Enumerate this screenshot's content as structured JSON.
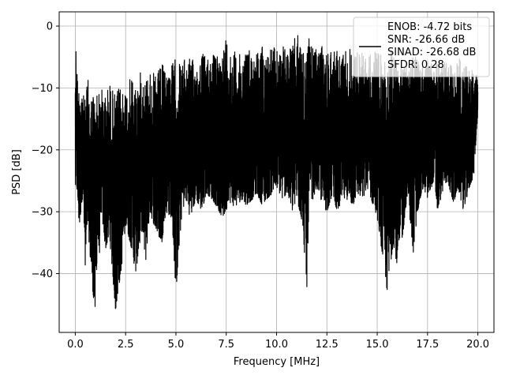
{
  "chart_data": {
    "type": "line",
    "title": "",
    "xlabel": "Frequency [MHz]",
    "ylabel": "PSD [dB]",
    "xlim": [
      -0.8,
      20.8
    ],
    "ylim": [
      -49.5,
      2.3
    ],
    "grid": true,
    "x_ticks": [
      0.0,
      2.5,
      5.0,
      7.5,
      10.0,
      12.5,
      15.0,
      17.5,
      20.0
    ],
    "x_tick_labels": [
      "0.0",
      "2.5",
      "5.0",
      "7.5",
      "10.0",
      "12.5",
      "15.0",
      "17.5",
      "20.0"
    ],
    "y_ticks": [
      0,
      -10,
      -20,
      -30,
      -40
    ],
    "y_tick_labels": [
      "0",
      "−10",
      "−20",
      "−30",
      "−40"
    ],
    "legend": {
      "position": "top-right",
      "entries": [
        "ENOB: -4.72 bits",
        "SNR: -26.66 dB",
        "SINAD: -26.68 dB",
        "SFDR: 0.28"
      ]
    },
    "series": [
      {
        "color": "#000000",
        "x": [
          0.0,
          0.05,
          0.1,
          0.15,
          0.2,
          0.3,
          0.4,
          0.5,
          0.6,
          0.75,
          0.9,
          1.0,
          1.1,
          1.2,
          1.3,
          1.5,
          1.7,
          2.0,
          2.3,
          2.5,
          2.8,
          3.0,
          3.3,
          3.5,
          3.7,
          4.0,
          4.3,
          4.5,
          4.8,
          5.0,
          5.3,
          5.5,
          5.7,
          6.0,
          6.3,
          6.5,
          6.8,
          7.0,
          7.3,
          7.5,
          7.6,
          7.8,
          8.0,
          8.3,
          8.5,
          8.8,
          9.0,
          9.3,
          9.5,
          9.8,
          10.0,
          10.3,
          10.5,
          10.8,
          11.0,
          11.3,
          11.5,
          11.6,
          11.8,
          12.0,
          12.3,
          12.5,
          12.8,
          13.0,
          13.3,
          13.5,
          13.8,
          14.0,
          14.3,
          14.5,
          14.8,
          15.0,
          15.3,
          15.5,
          15.8,
          16.0,
          16.3,
          16.5,
          16.8,
          17.0,
          17.3,
          17.5,
          17.8,
          18.0,
          18.3,
          18.5,
          18.8,
          19.0,
          19.3,
          19.5,
          19.8,
          20.0
        ],
        "y_upper": [
          -4,
          -1.5,
          -7,
          -11,
          -8,
          -9,
          -11,
          -12,
          -8,
          -11,
          -10,
          -12,
          -9,
          -11,
          -10,
          -11,
          -9,
          -11,
          -9,
          -10,
          -8,
          -9,
          -7,
          -8,
          -7,
          -8,
          -6,
          -7,
          -6,
          -5,
          -6,
          -5,
          -5,
          -6,
          -4,
          -5,
          -4,
          -5,
          -4,
          -1,
          -3,
          -4,
          -4,
          -5,
          -3,
          -4,
          -4,
          -3,
          -4,
          -3,
          -4,
          -3,
          -4,
          -3,
          -1,
          -3,
          -4,
          -2,
          -3,
          -4,
          -3,
          -4,
          -3,
          -4,
          -4,
          -3,
          -4,
          -4,
          -4,
          -5,
          -4,
          -4,
          -5,
          -4,
          -4,
          -6,
          -5,
          -3,
          -5,
          -5,
          -6,
          -5,
          -6,
          -5,
          -6,
          -5,
          -6,
          -5,
          -6,
          -6,
          -7,
          -8
        ],
        "y_lower": [
          -27,
          -25,
          -28,
          -30,
          -33,
          -29,
          -27,
          -42,
          -31,
          -38,
          -44,
          -47,
          -35,
          -37,
          -30,
          -36,
          -34,
          -46,
          -39,
          -32,
          -36,
          -40,
          -33,
          -38,
          -30,
          -33,
          -35,
          -30,
          -31,
          -43,
          -30,
          -28,
          -31,
          -28,
          -30,
          -27,
          -28,
          -29,
          -31,
          -30,
          -28,
          -29,
          -29,
          -28,
          -29,
          -28,
          -27,
          -29,
          -28,
          -27,
          -26,
          -28,
          -27,
          -30,
          -28,
          -32,
          -43,
          -30,
          -28,
          -26,
          -29,
          -30,
          -27,
          -30,
          -28,
          -28,
          -29,
          -27,
          -28,
          -26,
          -29,
          -31,
          -38,
          -43,
          -35,
          -39,
          -33,
          -27,
          -37,
          -30,
          -26,
          -28,
          -25,
          -30,
          -26,
          -25,
          -29,
          -26,
          -30,
          -27,
          -24,
          -14
        ]
      }
    ]
  }
}
